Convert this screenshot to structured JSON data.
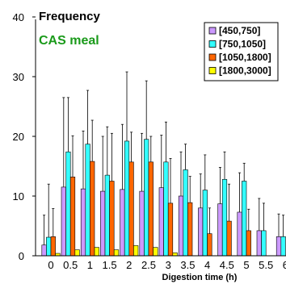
{
  "chart_data": {
    "type": "bar",
    "ylabel": "Frequency",
    "annotation": "CAS meal",
    "xlabel": "Digestion time (h)",
    "categories": [
      "0",
      "0.5",
      "1",
      "1.5",
      "2",
      "2.5",
      "3",
      "3.5",
      "4",
      "4.5",
      "5",
      "5.5",
      "6"
    ],
    "ylim": [
      0,
      40
    ],
    "yticks": [
      "0",
      "10",
      "20",
      "30",
      "40"
    ],
    "legend_position": "top-right",
    "grid": false,
    "series": [
      {
        "name": "[450,750]",
        "color": "#cc99ff",
        "values": [
          1.8,
          11.5,
          11.2,
          10.8,
          11.1,
          10.8,
          11.4,
          10,
          8,
          8.7,
          7.3,
          4.2,
          3.2
        ],
        "errors": [
          5,
          15,
          9.7,
          9.2,
          10.9,
          9.7,
          8.8,
          7.4,
          5.7,
          6.1,
          6.6,
          5.4,
          3.8
        ]
      },
      {
        "name": "[750,1050]",
        "color": "#33ffff",
        "values": [
          3.1,
          17.4,
          18.7,
          13.5,
          19.2,
          19.5,
          15.7,
          14.4,
          11,
          12.8,
          12.5,
          4.2,
          3.2
        ],
        "errors": [
          8.9,
          9.1,
          9,
          8.1,
          11.6,
          9.8,
          6.7,
          4.3,
          5.9,
          4.6,
          3,
          4.6,
          3.6
        ]
      },
      {
        "name": "[1050,1800]",
        "color": "#ff6600",
        "values": [
          3.2,
          13.2,
          15.8,
          12.5,
          15.7,
          15.7,
          8.8,
          8.9,
          3.7,
          5.8,
          4.2,
          0,
          0
        ],
        "errors": [
          4.7,
          6.9,
          6.9,
          8,
          5,
          4.3,
          7.5,
          4.4,
          4.3,
          6.2,
          3.6,
          0,
          0
        ]
      },
      {
        "name": "[1800,3000]",
        "color": "#ffff00",
        "values": [
          0.4,
          1,
          1.4,
          1,
          1.7,
          1.4,
          0.5,
          0,
          0,
          0,
          0,
          0,
          0
        ],
        "errors": [
          0,
          0,
          0,
          0,
          0,
          0,
          0,
          0,
          0,
          0,
          0,
          0,
          0
        ]
      }
    ]
  }
}
